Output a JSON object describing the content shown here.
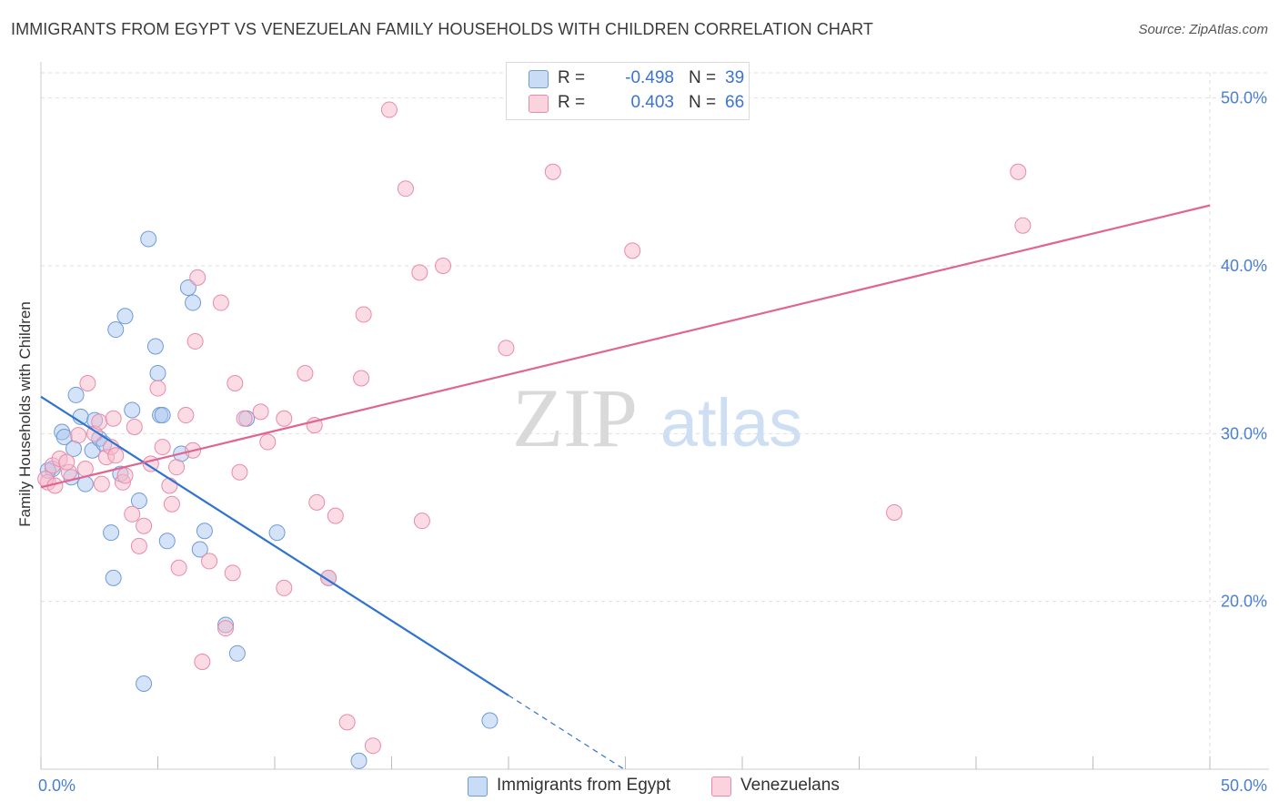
{
  "title": "IMMIGRANTS FROM EGYPT VS VENEZUELAN FAMILY HOUSEHOLDS WITH CHILDREN CORRELATION CHART",
  "source": "Source: ZipAtlas.com",
  "watermark": {
    "zip": "ZIP",
    "atlas": "atlas"
  },
  "legend": {
    "rows": [
      {
        "r_label": "R =",
        "r_value": "-0.498",
        "n_label": "N =",
        "n_value": "39",
        "color": "#a9c7f0"
      },
      {
        "r_label": "R =",
        "r_value": "0.403",
        "n_label": "N =",
        "n_value": "66",
        "color": "#f7b9cc"
      }
    ]
  },
  "bottom_legend": [
    {
      "label": "Immigrants from Egypt",
      "color": "#a9c7f0"
    },
    {
      "label": "Venezuelans",
      "color": "#f7b9cc"
    }
  ],
  "chart_data": {
    "type": "scatter",
    "title": "IMMIGRANTS FROM EGYPT VS VENEZUELAN FAMILY HOUSEHOLDS WITH CHILDREN CORRELATION CHART",
    "xlabel": "",
    "ylabel": "Family Households with Children",
    "xlim": [
      0,
      50
    ],
    "ylim": [
      10,
      51.5
    ],
    "x_tick_labels": [
      "0.0%",
      "50.0%"
    ],
    "y_ticks": [
      20,
      30,
      40,
      50
    ],
    "y_tick_labels": [
      "20.0%",
      "30.0%",
      "40.0%",
      "50.0%"
    ],
    "grid": true,
    "series": [
      {
        "name": "Immigrants from Egypt",
        "color": "#a9c7f0",
        "stroke": "#6f9bd8",
        "trend_color": "#2f72d0",
        "trend": {
          "x0": 0,
          "y0": 32.2,
          "x1": 20,
          "y1": 14.4,
          "dash_to_x": 25
        },
        "points": [
          [
            0.5,
            27.9
          ],
          [
            0.9,
            30.1
          ],
          [
            1.0,
            29.8
          ],
          [
            1.3,
            27.4
          ],
          [
            1.4,
            29.1
          ],
          [
            1.5,
            32.3
          ],
          [
            1.7,
            31.0
          ],
          [
            1.9,
            27.0
          ],
          [
            2.2,
            29.0
          ],
          [
            2.3,
            30.8
          ],
          [
            2.5,
            29.7
          ],
          [
            2.7,
            29.4
          ],
          [
            3.0,
            24.1
          ],
          [
            3.1,
            21.4
          ],
          [
            3.2,
            36.2
          ],
          [
            3.4,
            27.6
          ],
          [
            3.6,
            37.0
          ],
          [
            3.9,
            31.4
          ],
          [
            4.2,
            26.0
          ],
          [
            4.4,
            15.1
          ],
          [
            4.6,
            41.6
          ],
          [
            4.9,
            35.2
          ],
          [
            5.0,
            33.6
          ],
          [
            5.1,
            31.1
          ],
          [
            5.2,
            31.1
          ],
          [
            5.4,
            23.6
          ],
          [
            6.0,
            28.8
          ],
          [
            6.3,
            38.7
          ],
          [
            6.5,
            37.8
          ],
          [
            6.8,
            23.1
          ],
          [
            7.0,
            24.2
          ],
          [
            7.9,
            18.6
          ],
          [
            8.4,
            16.9
          ],
          [
            8.8,
            30.9
          ],
          [
            10.1,
            24.1
          ],
          [
            12.3,
            21.4
          ],
          [
            13.6,
            10.5
          ],
          [
            19.2,
            12.9
          ],
          [
            0.3,
            27.8
          ]
        ]
      },
      {
        "name": "Venezuelans",
        "color": "#f7b9cc",
        "stroke": "#e98aa8",
        "trend_color": "#e0668f",
        "trend": {
          "x0": 0,
          "y0": 26.8,
          "x1": 50,
          "y1": 43.6
        },
        "points": [
          [
            0.3,
            27.1
          ],
          [
            0.5,
            28.1
          ],
          [
            0.8,
            28.5
          ],
          [
            1.2,
            27.7
          ],
          [
            1.6,
            29.9
          ],
          [
            1.9,
            27.9
          ],
          [
            2.0,
            33.0
          ],
          [
            2.3,
            30.0
          ],
          [
            2.5,
            30.7
          ],
          [
            2.6,
            27.0
          ],
          [
            2.8,
            28.6
          ],
          [
            3.0,
            29.2
          ],
          [
            3.1,
            30.9
          ],
          [
            3.2,
            28.7
          ],
          [
            3.5,
            27.1
          ],
          [
            3.6,
            27.5
          ],
          [
            3.9,
            25.2
          ],
          [
            4.0,
            30.4
          ],
          [
            4.2,
            23.3
          ],
          [
            4.4,
            24.5
          ],
          [
            4.7,
            28.2
          ],
          [
            5.0,
            32.7
          ],
          [
            5.2,
            29.2
          ],
          [
            5.5,
            26.9
          ],
          [
            5.6,
            25.8
          ],
          [
            5.8,
            28.0
          ],
          [
            5.9,
            22.0
          ],
          [
            6.2,
            31.1
          ],
          [
            6.5,
            29.0
          ],
          [
            6.6,
            35.5
          ],
          [
            6.7,
            39.3
          ],
          [
            7.2,
            22.4
          ],
          [
            6.9,
            16.4
          ],
          [
            7.7,
            37.8
          ],
          [
            7.9,
            18.4
          ],
          [
            8.2,
            21.7
          ],
          [
            8.3,
            33.0
          ],
          [
            8.5,
            27.7
          ],
          [
            8.7,
            30.9
          ],
          [
            9.4,
            31.3
          ],
          [
            9.7,
            29.5
          ],
          [
            10.4,
            30.9
          ],
          [
            10.4,
            20.8
          ],
          [
            11.3,
            33.6
          ],
          [
            11.7,
            30.5
          ],
          [
            11.8,
            25.9
          ],
          [
            12.3,
            21.4
          ],
          [
            12.6,
            25.1
          ],
          [
            13.1,
            12.8
          ],
          [
            13.7,
            33.3
          ],
          [
            13.8,
            37.1
          ],
          [
            14.2,
            11.4
          ],
          [
            14.9,
            49.3
          ],
          [
            15.6,
            44.6
          ],
          [
            16.2,
            39.6
          ],
          [
            16.3,
            24.8
          ],
          [
            17.2,
            40.0
          ],
          [
            19.9,
            35.1
          ],
          [
            21.9,
            45.6
          ],
          [
            25.3,
            40.9
          ],
          [
            36.5,
            25.3
          ],
          [
            41.8,
            45.6
          ],
          [
            42.0,
            42.4
          ],
          [
            0.2,
            27.3
          ],
          [
            0.6,
            26.9
          ],
          [
            1.1,
            28.3
          ]
        ]
      }
    ]
  }
}
